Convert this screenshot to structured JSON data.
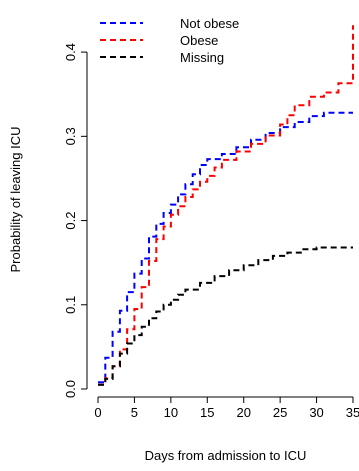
{
  "chart_data": {
    "type": "line",
    "step": true,
    "xlabel": "Days from admission to ICU",
    "ylabel": "Probability of leaving ICU",
    "xlim": [
      0,
      35
    ],
    "ylim": [
      0,
      0.45
    ],
    "x_ticks": [
      0,
      5,
      10,
      15,
      20,
      25,
      30,
      35
    ],
    "y_ticks": [
      0.0,
      0.1,
      0.2,
      0.3,
      0.4
    ],
    "x_tick_labels": [
      "0",
      "5",
      "10",
      "15",
      "20",
      "25",
      "30",
      "35"
    ],
    "y_tick_labels": [
      "0.0",
      "0.1",
      "0.2",
      "0.3",
      "0.4"
    ],
    "grid": false,
    "box": false,
    "legend_position": "top-left",
    "series": [
      {
        "name": "Not obese",
        "color": "#0000ff",
        "line_style": "dashed",
        "x": [
          0,
          1,
          2,
          3,
          4,
          5,
          6,
          7,
          8,
          9,
          10,
          11,
          12,
          13,
          14,
          15,
          17,
          19,
          21,
          23,
          25,
          27,
          29,
          31,
          35
        ],
        "y": [
          0.008,
          0.037,
          0.068,
          0.093,
          0.115,
          0.137,
          0.155,
          0.181,
          0.196,
          0.209,
          0.219,
          0.231,
          0.243,
          0.255,
          0.266,
          0.273,
          0.279,
          0.287,
          0.296,
          0.304,
          0.311,
          0.317,
          0.324,
          0.328,
          0.328
        ]
      },
      {
        "name": "Obese",
        "color": "#ff0000",
        "line_style": "dashed",
        "x": [
          0,
          1,
          2,
          3,
          4,
          5,
          6,
          7,
          8,
          9,
          10,
          11,
          12,
          13,
          14,
          15,
          16,
          17,
          19,
          21,
          23,
          25,
          26,
          27,
          29,
          31,
          33,
          35
        ],
        "y": [
          0.005,
          0.013,
          0.027,
          0.047,
          0.071,
          0.095,
          0.121,
          0.152,
          0.178,
          0.193,
          0.207,
          0.217,
          0.228,
          0.237,
          0.246,
          0.253,
          0.263,
          0.272,
          0.282,
          0.291,
          0.301,
          0.314,
          0.325,
          0.337,
          0.347,
          0.352,
          0.363,
          0.432
        ]
      },
      {
        "name": "Missing",
        "color": "#000000",
        "line_style": "dashed",
        "x": [
          0,
          1,
          2,
          3,
          4,
          5,
          6,
          7,
          8,
          9,
          10,
          11,
          12,
          14,
          16,
          18,
          20,
          22,
          24,
          26,
          28,
          30,
          35
        ],
        "y": [
          0.005,
          0.012,
          0.027,
          0.042,
          0.054,
          0.064,
          0.074,
          0.084,
          0.092,
          0.1,
          0.106,
          0.112,
          0.118,
          0.126,
          0.134,
          0.141,
          0.147,
          0.153,
          0.158,
          0.162,
          0.166,
          0.168,
          0.168
        ]
      }
    ]
  }
}
